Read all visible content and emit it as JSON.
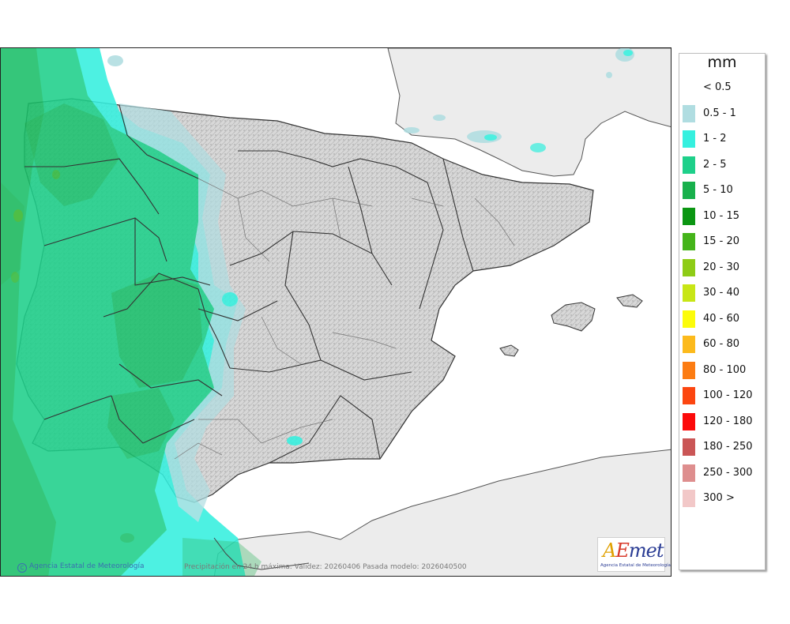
{
  "legend": {
    "unit": "mm",
    "items": [
      {
        "label": "< 0.5",
        "color": "#ffffff"
      },
      {
        "label": "0.5 - 1",
        "color": "#b0dde1"
      },
      {
        "label": "1 - 2",
        "color": "#35f0df"
      },
      {
        "label": "2 - 5",
        "color": "#1ed08a"
      },
      {
        "label": "5 - 10",
        "color": "#18b04c"
      },
      {
        "label": "10 - 15",
        "color": "#0b9612"
      },
      {
        "label": "15 - 20",
        "color": "#45b41a"
      },
      {
        "label": "20 - 30",
        "color": "#8ecc16"
      },
      {
        "label": "30 - 40",
        "color": "#c8e616"
      },
      {
        "label": "40 - 60",
        "color": "#fcfc0a"
      },
      {
        "label": "60 - 80",
        "color": "#fcba1c"
      },
      {
        "label": "80 - 100",
        "color": "#fc7c12"
      },
      {
        "label": "100 - 120",
        "color": "#fc4610"
      },
      {
        "label": "120 - 180",
        "color": "#fc0a0a"
      },
      {
        "label": "180 - 250",
        "color": "#ca5656"
      },
      {
        "label": "250 - 300",
        "color": "#de8e8e"
      },
      {
        "label": "300 >",
        "color": "#f2c8c8"
      }
    ]
  },
  "footer": {
    "copyright": "Agencia Estatal de Meteorología",
    "caption": "Precipitación en 24 h máxima. Validez: 20260406 Pasada modelo: 2026040500"
  },
  "logo": {
    "name": "AEmet",
    "subtitle": "Agencia Estatal de Meteorología"
  }
}
